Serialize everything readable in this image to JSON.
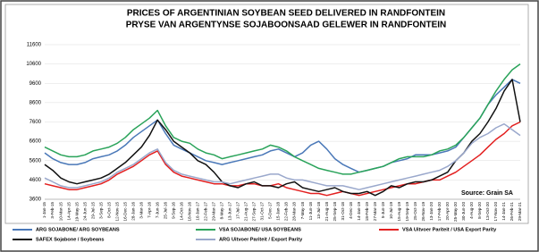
{
  "chart_data": {
    "type": "line",
    "title": "PRICES OF ARGENTINIAN SOYBEAN SEED DELIVERED IN RANDFONTEIN",
    "subtitle": "PRYSE VAN ARGENTYNSE SOJABOONSAAD GELEWER IN RANDFONTEIN",
    "source": "Source: Grain SA",
    "categories": [
      "1-Jan-15",
      "3-Feb-15",
      "10-Mar-15",
      "14-Apr-15",
      "19-May-15",
      "24-Jun-15",
      "29-Jul-15",
      "3-Sep-15",
      "8-Oct-15",
      "12-Nov-15",
      "16-Dec-15",
      "28-Jan-16",
      "3-Mar-16",
      "7-Apr-16",
      "7-Jun-16",
      "25-Jul-16",
      "9-Sep-16",
      "14-Oct-16",
      "18-Nov-16",
      "10-Jan-17",
      "22-Feb-17",
      "29-Mar-17",
      "8-May-17",
      "13-Jun-17",
      "17-Jul-17",
      "21-Aug-17",
      "27-Sep-17",
      "31-Oct-17",
      "5-Dec-17",
      "15-Jan-18",
      "22-Feb-18",
      "28-Mar-18",
      "7-May-18",
      "11-Jun-18",
      "13-Jul-18",
      "21-Aug-18",
      "25-Sep-18",
      "31-Oct-18",
      "4-Dec-18",
      "14-Jan-19",
      "18-Feb-19",
      "27-Mar-19",
      "5-Jun-19",
      "10-Jul-19",
      "15-Aug-19",
      "19-Sep-19",
      "25-Oct-19",
      "26-Nov-19",
      "13-Jan-20",
      "17-Feb-20",
      "20-Apr-20",
      "25-May-20",
      "30-Jun-20",
      "4-Aug-20",
      "8-Sep-20",
      "13-Oct-20",
      "17-Nov-20",
      "14-Jan-21",
      "26-Feb-21",
      "29-Mar-21"
    ],
    "series": [
      {
        "name": "ARG SOJABONE/ ARG SOYBEANS",
        "color": "#4a78b8",
        "values": [
          6000,
          5700,
          5500,
          5400,
          5400,
          5500,
          5700,
          5800,
          5900,
          6100,
          6400,
          6800,
          7100,
          7400,
          7700,
          7000,
          6400,
          6200,
          6000,
          5800,
          5600,
          5500,
          5400,
          5500,
          5600,
          5700,
          5800,
          5900,
          6100,
          6200,
          6000,
          5800,
          6000,
          6400,
          6600,
          6200,
          5700,
          5400,
          5200,
          5000,
          5100,
          5200,
          5300,
          5500,
          5600,
          5700,
          5900,
          5900,
          5900,
          6000,
          6100,
          6300,
          6800,
          7300,
          7800,
          8500,
          9000,
          9400,
          9800,
          9600
        ]
      },
      {
        "name": "VSA SOJABONE/ USA SOYBEANS",
        "color": "#2aa35a",
        "values": [
          6300,
          6100,
          5900,
          5800,
          5800,
          5900,
          6100,
          6200,
          6300,
          6500,
          6800,
          7200,
          7500,
          7800,
          8200,
          7400,
          6800,
          6600,
          6500,
          6200,
          6000,
          5900,
          5700,
          5800,
          5900,
          6000,
          6100,
          6200,
          6400,
          6300,
          6100,
          5800,
          5600,
          5400,
          5200,
          5100,
          5000,
          4900,
          4900,
          5000,
          5100,
          5200,
          5300,
          5500,
          5700,
          5800,
          5800,
          5800,
          5900,
          6100,
          6200,
          6400,
          6800,
          7300,
          7800,
          8500,
          9200,
          9800,
          10300,
          10600
        ]
      },
      {
        "name": "VSA Uitvoer Pariteit / USA Export Parity",
        "color": "#e32020",
        "values": [
          4400,
          4300,
          4200,
          4100,
          4100,
          4200,
          4300,
          4400,
          4600,
          4900,
          5100,
          5300,
          5600,
          5900,
          6100,
          5400,
          5000,
          4800,
          4700,
          4600,
          4500,
          4400,
          4400,
          4300,
          4300,
          4400,
          4400,
          4300,
          4300,
          4400,
          4200,
          4100,
          4000,
          3900,
          3900,
          3800,
          3900,
          4000,
          3900,
          3800,
          3900,
          4000,
          4100,
          4200,
          4300,
          4400,
          4400,
          4500,
          4600,
          4600,
          4800,
          5000,
          5300,
          5600,
          5900,
          6300,
          6700,
          7000,
          7400,
          7600
        ]
      },
      {
        "name": "SAFEX Sojabone / Soybeans",
        "color": "#111111",
        "values": [
          5400,
          5100,
          4700,
          4500,
          4400,
          4500,
          4600,
          4700,
          4900,
          5200,
          5500,
          5900,
          6300,
          6900,
          7700,
          7200,
          6600,
          6300,
          6000,
          5600,
          5400,
          5000,
          4500,
          4300,
          4200,
          4400,
          4500,
          4300,
          4300,
          4200,
          4400,
          4500,
          4200,
          4100,
          4000,
          4100,
          4200,
          4000,
          3900,
          3900,
          4000,
          3800,
          4000,
          4300,
          4200,
          4400,
          4500,
          4500,
          4600,
          4800,
          5000,
          5600,
          6000,
          6600,
          7000,
          7600,
          8300,
          9200,
          9800,
          7600
        ]
      },
      {
        "name": "ARG Uitvoer Pariteit / Export Parity",
        "color": "#9aa8cc",
        "values": [
          4700,
          4500,
          4300,
          4200,
          4200,
          4300,
          4400,
          4500,
          4700,
          5000,
          5200,
          5400,
          5700,
          6000,
          6200,
          5500,
          5100,
          4900,
          4800,
          4700,
          4600,
          4500,
          4500,
          4400,
          4500,
          4600,
          4700,
          4800,
          4900,
          4900,
          4700,
          4600,
          4600,
          4500,
          4400,
          4300,
          4300,
          4300,
          4200,
          4100,
          4200,
          4300,
          4400,
          4500,
          4600,
          4700,
          4800,
          4900,
          5000,
          5100,
          5300,
          5600,
          6000,
          6500,
          6800,
          7000,
          7300,
          7500,
          7200,
          6900
        ]
      }
    ],
    "ylim": [
      3600,
      11600
    ],
    "yticks": [
      3600,
      4600,
      5600,
      6600,
      7600,
      8600,
      9600,
      10600,
      11600
    ],
    "grid": true
  }
}
